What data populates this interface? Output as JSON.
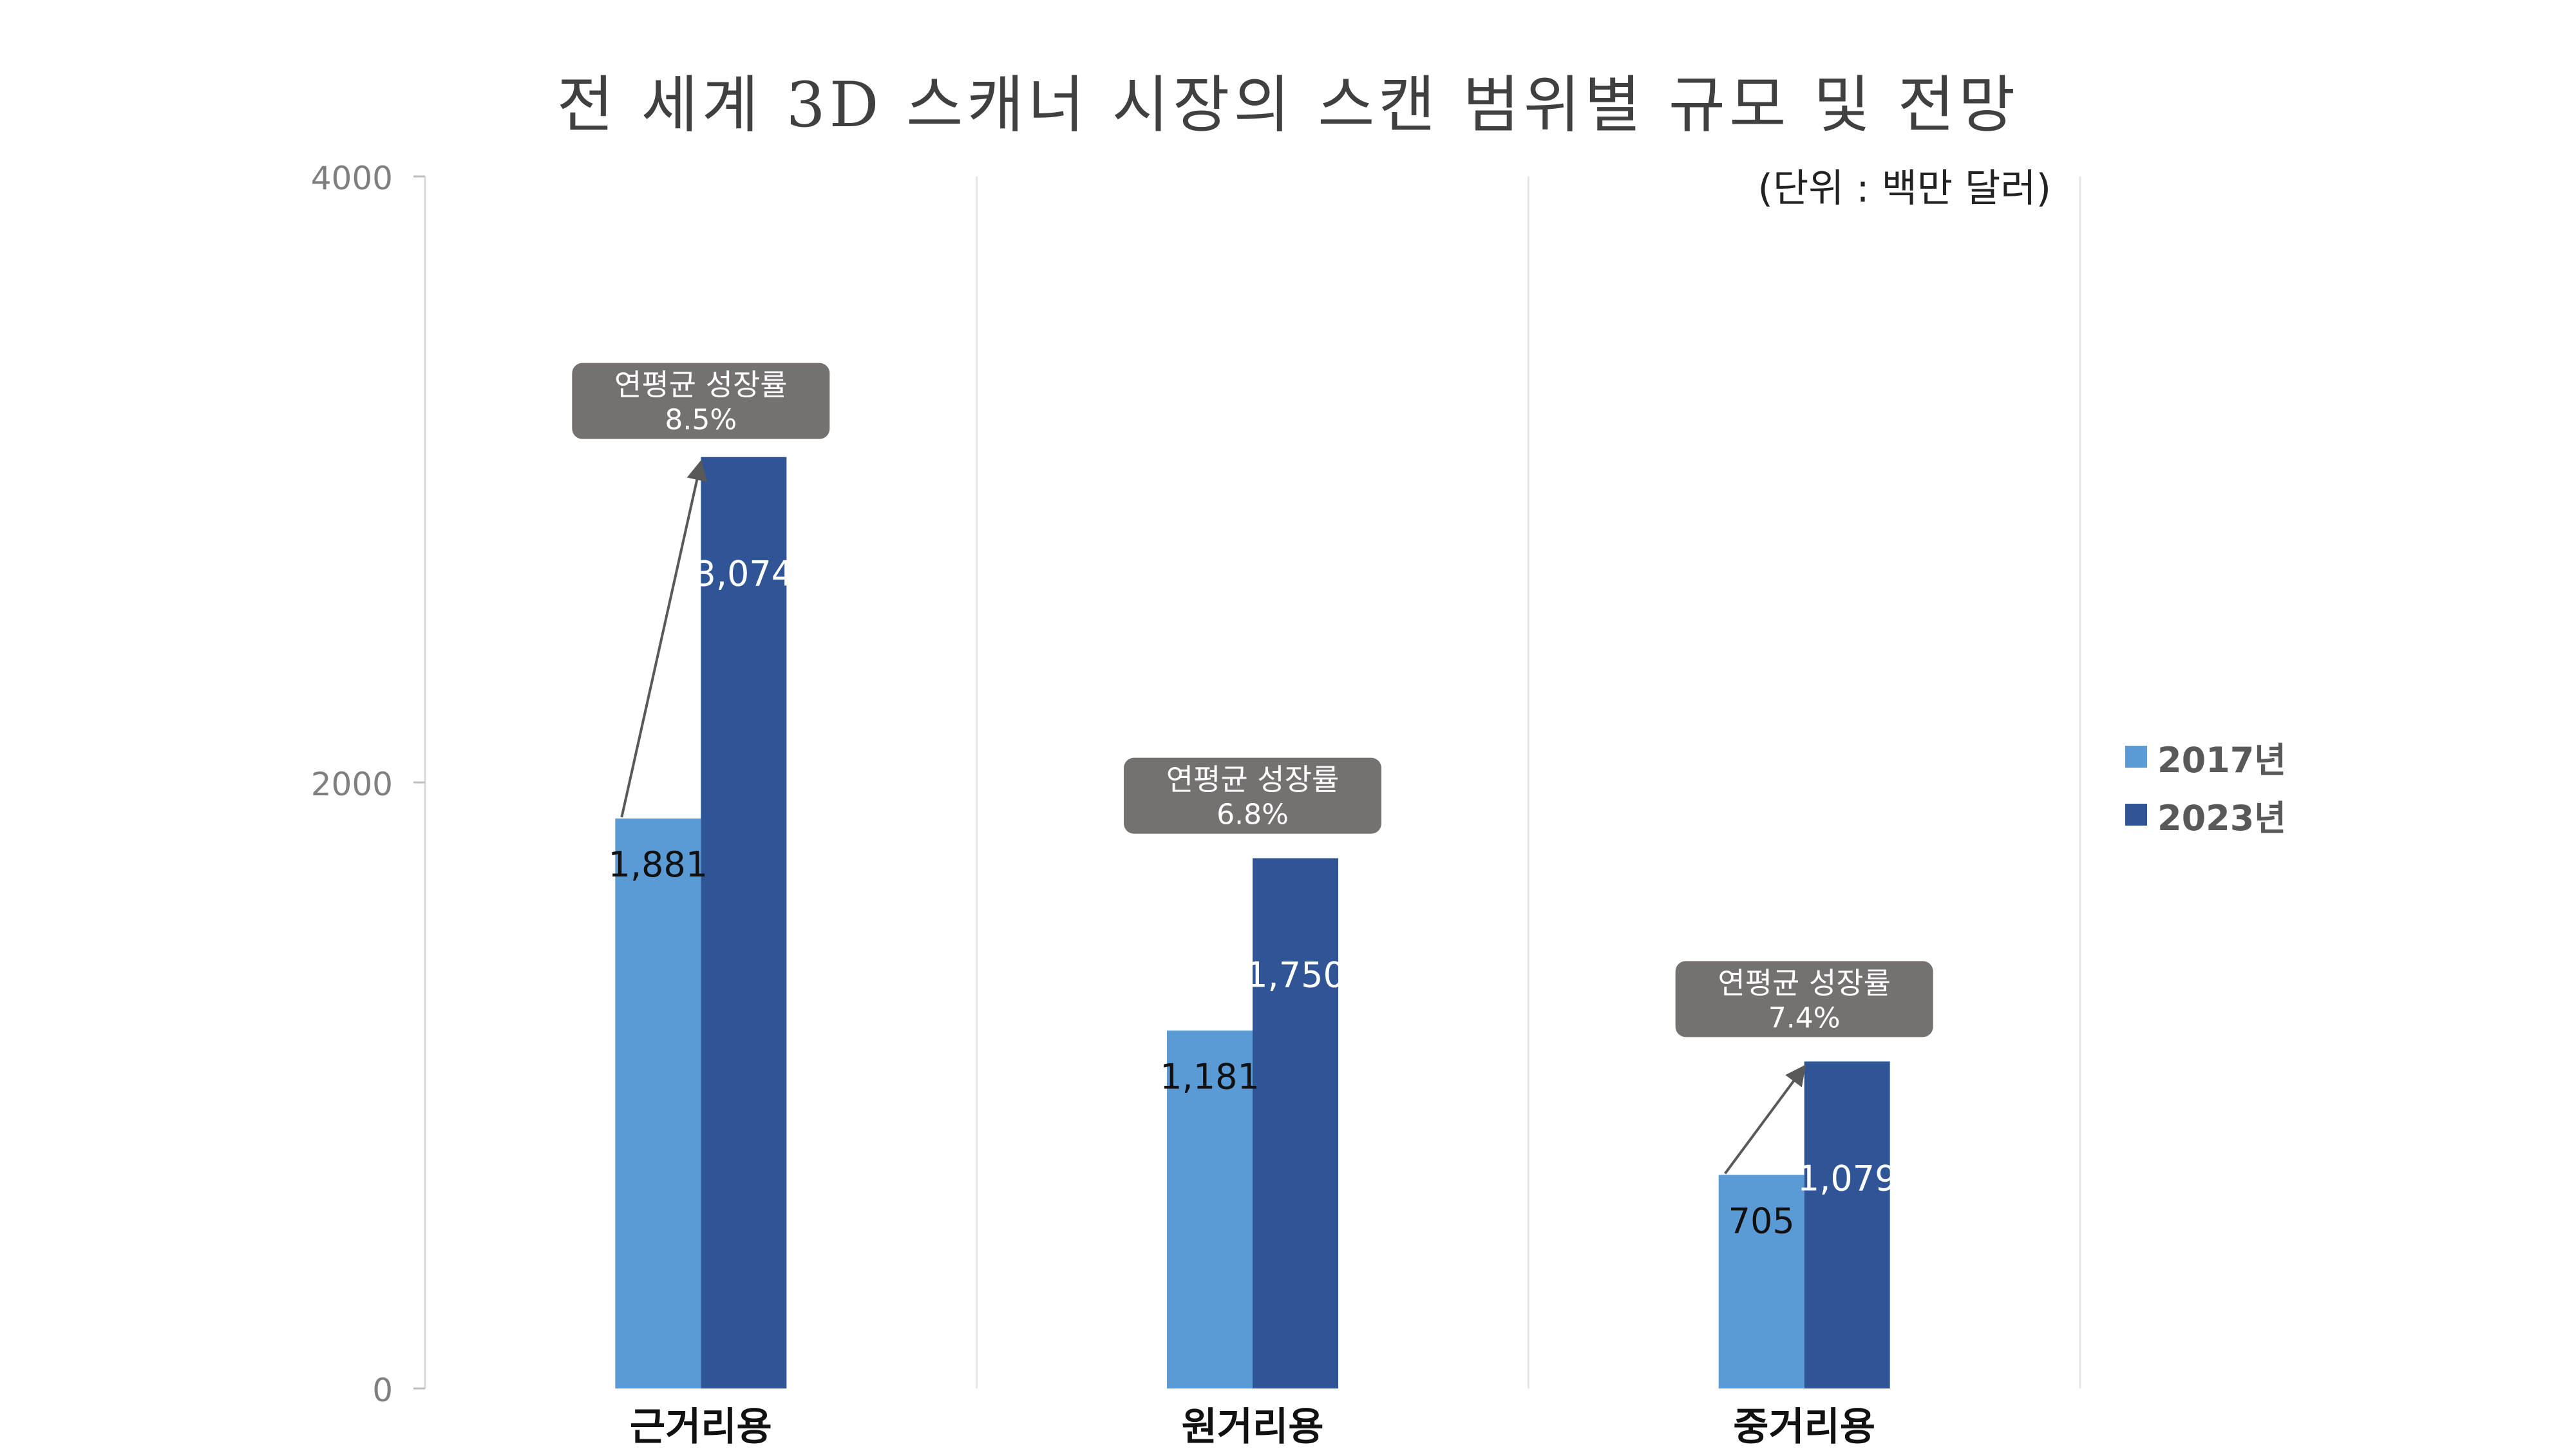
{
  "chart_data": {
    "type": "bar",
    "title": "전 세계 3D 스캐너 시장의 스캔 범위별 규모 및 전망",
    "unit_label": "(단위 : 백만 달러)",
    "categories": [
      "근거리용",
      "원거리용",
      "중거리용"
    ],
    "series": [
      {
        "name": "2017년",
        "color": "#5b9bd5",
        "values": [
          1881,
          1181,
          705
        ],
        "labels": [
          "1,881",
          "1,181",
          "705"
        ]
      },
      {
        "name": "2023년",
        "color": "#2f5597",
        "values": [
          3074,
          1750,
          1079
        ],
        "labels": [
          "3,074",
          "1,750",
          "1,079"
        ]
      }
    ],
    "ylim": [
      0,
      4000
    ],
    "yticks": [
      "0",
      "2000",
      "4000"
    ],
    "grid": true,
    "legend_position": "right",
    "callouts": [
      {
        "line1": "연평균 성장률",
        "line2": "8.5%"
      },
      {
        "line1": "연평균 성장률",
        "line2": "6.8%"
      },
      {
        "line1": "연평균 성장률",
        "line2": "7.4%"
      }
    ],
    "callout_color": "#767171",
    "arrow_color": "#595959"
  }
}
